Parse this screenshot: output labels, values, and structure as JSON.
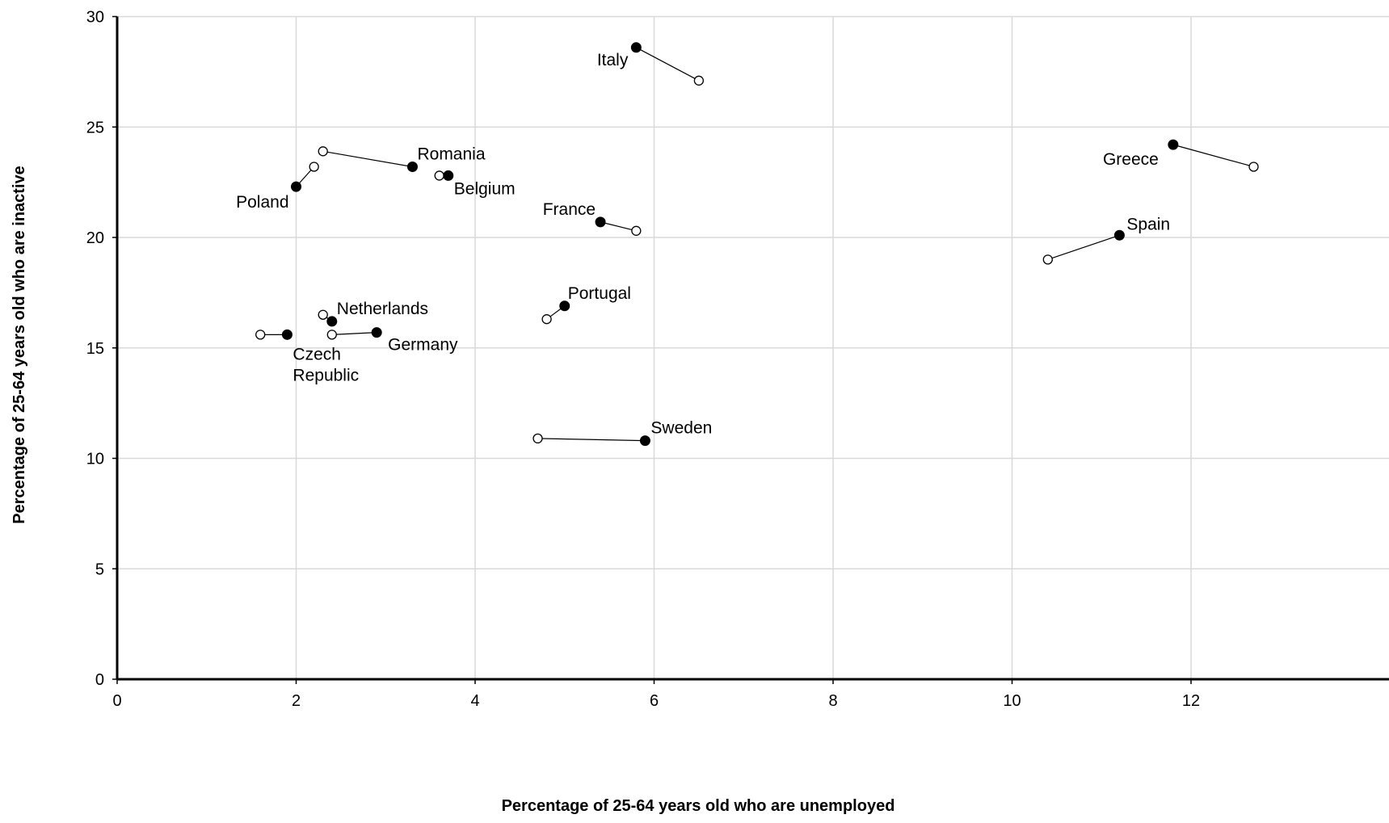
{
  "chart_data": {
    "type": "scatter",
    "title": "",
    "xlabel": "Percentage of 25-64 years old who are unemployed",
    "ylabel": "Percentage of 25-64 years old who are inactive",
    "xlim": [
      0,
      13
    ],
    "ylim": [
      0,
      30
    ],
    "x_ticks": [
      "0",
      "2",
      "4",
      "6",
      "8",
      "10",
      "12"
    ],
    "y_ticks": [
      "0",
      "5",
      "10",
      "15",
      "20",
      "25",
      "30"
    ],
    "grid": true,
    "legend": "none",
    "marker_colors": {
      "filled": "#000000",
      "open": "#ffffff",
      "grid": "#d9d9d9",
      "axis": "#000000"
    },
    "countries": [
      {
        "name": "Italy",
        "filled": [
          5.8,
          28.6
        ],
        "open": [
          6.5,
          27.1
        ]
      },
      {
        "name": "Romania",
        "filled": [
          3.3,
          23.2
        ],
        "open": [
          2.3,
          23.9
        ]
      },
      {
        "name": "Poland",
        "filled": [
          2.0,
          22.3
        ],
        "open": [
          2.2,
          23.2
        ]
      },
      {
        "name": "Belgium",
        "filled": [
          3.7,
          22.8
        ],
        "open": [
          3.6,
          22.8
        ]
      },
      {
        "name": "France",
        "filled": [
          5.4,
          20.7
        ],
        "open": [
          5.8,
          20.3
        ]
      },
      {
        "name": "Greece",
        "filled": [
          11.8,
          24.2
        ],
        "open": [
          12.7,
          23.2
        ]
      },
      {
        "name": "Spain",
        "filled": [
          11.2,
          20.1
        ],
        "open": [
          10.4,
          19.0
        ]
      },
      {
        "name": "Portugal",
        "filled": [
          5.0,
          16.9
        ],
        "open": [
          4.8,
          16.3
        ]
      },
      {
        "name": "Netherlands",
        "filled": [
          2.4,
          16.2
        ],
        "open": [
          2.3,
          16.5
        ]
      },
      {
        "name": "Czech Republic",
        "label_lines": [
          "Czech",
          "Republic"
        ],
        "filled": [
          1.9,
          15.6
        ],
        "open": [
          1.6,
          15.6
        ]
      },
      {
        "name": "Germany",
        "filled": [
          2.9,
          15.7
        ],
        "open": [
          2.4,
          15.6
        ]
      },
      {
        "name": "Sweden",
        "filled": [
          5.9,
          10.8
        ],
        "open": [
          4.7,
          10.9
        ]
      }
    ]
  }
}
